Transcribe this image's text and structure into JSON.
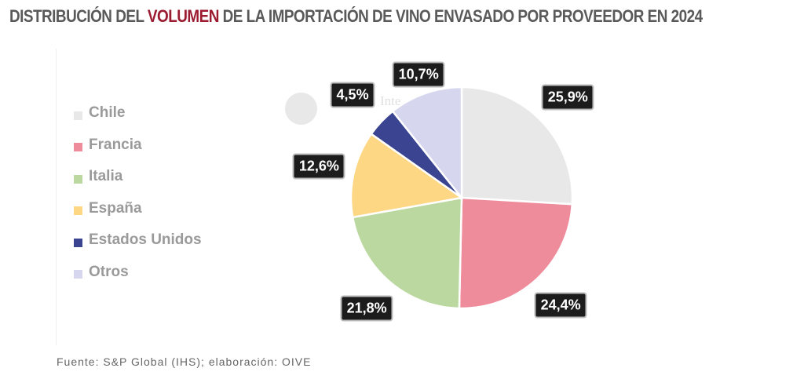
{
  "title": {
    "pre": "DISTRIBUCIÓN DEL ",
    "highlight": "VOLUMEN",
    "post": " DE LA IMPORTACIÓN  DE VINO ENVASADO POR PROVEEDOR EN 2024",
    "highlight_color": "#9b1b30"
  },
  "ghost_text": "Inte",
  "source": "Fuente:  S&P Global  (IHS); elaboración:  OIVE",
  "chart_data": {
    "type": "pie",
    "title": "DISTRIBUCIÓN DEL VOLUMEN DE LA IMPORTACIÓN DE VINO ENVASADO POR PROVEEDOR EN 2024",
    "legend_position": "left",
    "start": "top",
    "direction": "clockwise",
    "slices": [
      {
        "label": "Chile",
        "value": 25.9,
        "display": "25,9%",
        "color": "#e8e8e8"
      },
      {
        "label": "Francia",
        "value": 24.4,
        "display": "24,4%",
        "color": "#ef8c9c"
      },
      {
        "label": "Italia",
        "value": 21.8,
        "display": "21,8%",
        "color": "#bad89f"
      },
      {
        "label": "España",
        "value": 12.6,
        "display": "12,6%",
        "color": "#fed785"
      },
      {
        "label": "Estados Unidos",
        "value": 4.5,
        "display": "4,5%",
        "color": "#3a4490"
      },
      {
        "label": "Otros",
        "value": 10.7,
        "display": "10,7%",
        "color": "#d6d6ee"
      }
    ]
  }
}
